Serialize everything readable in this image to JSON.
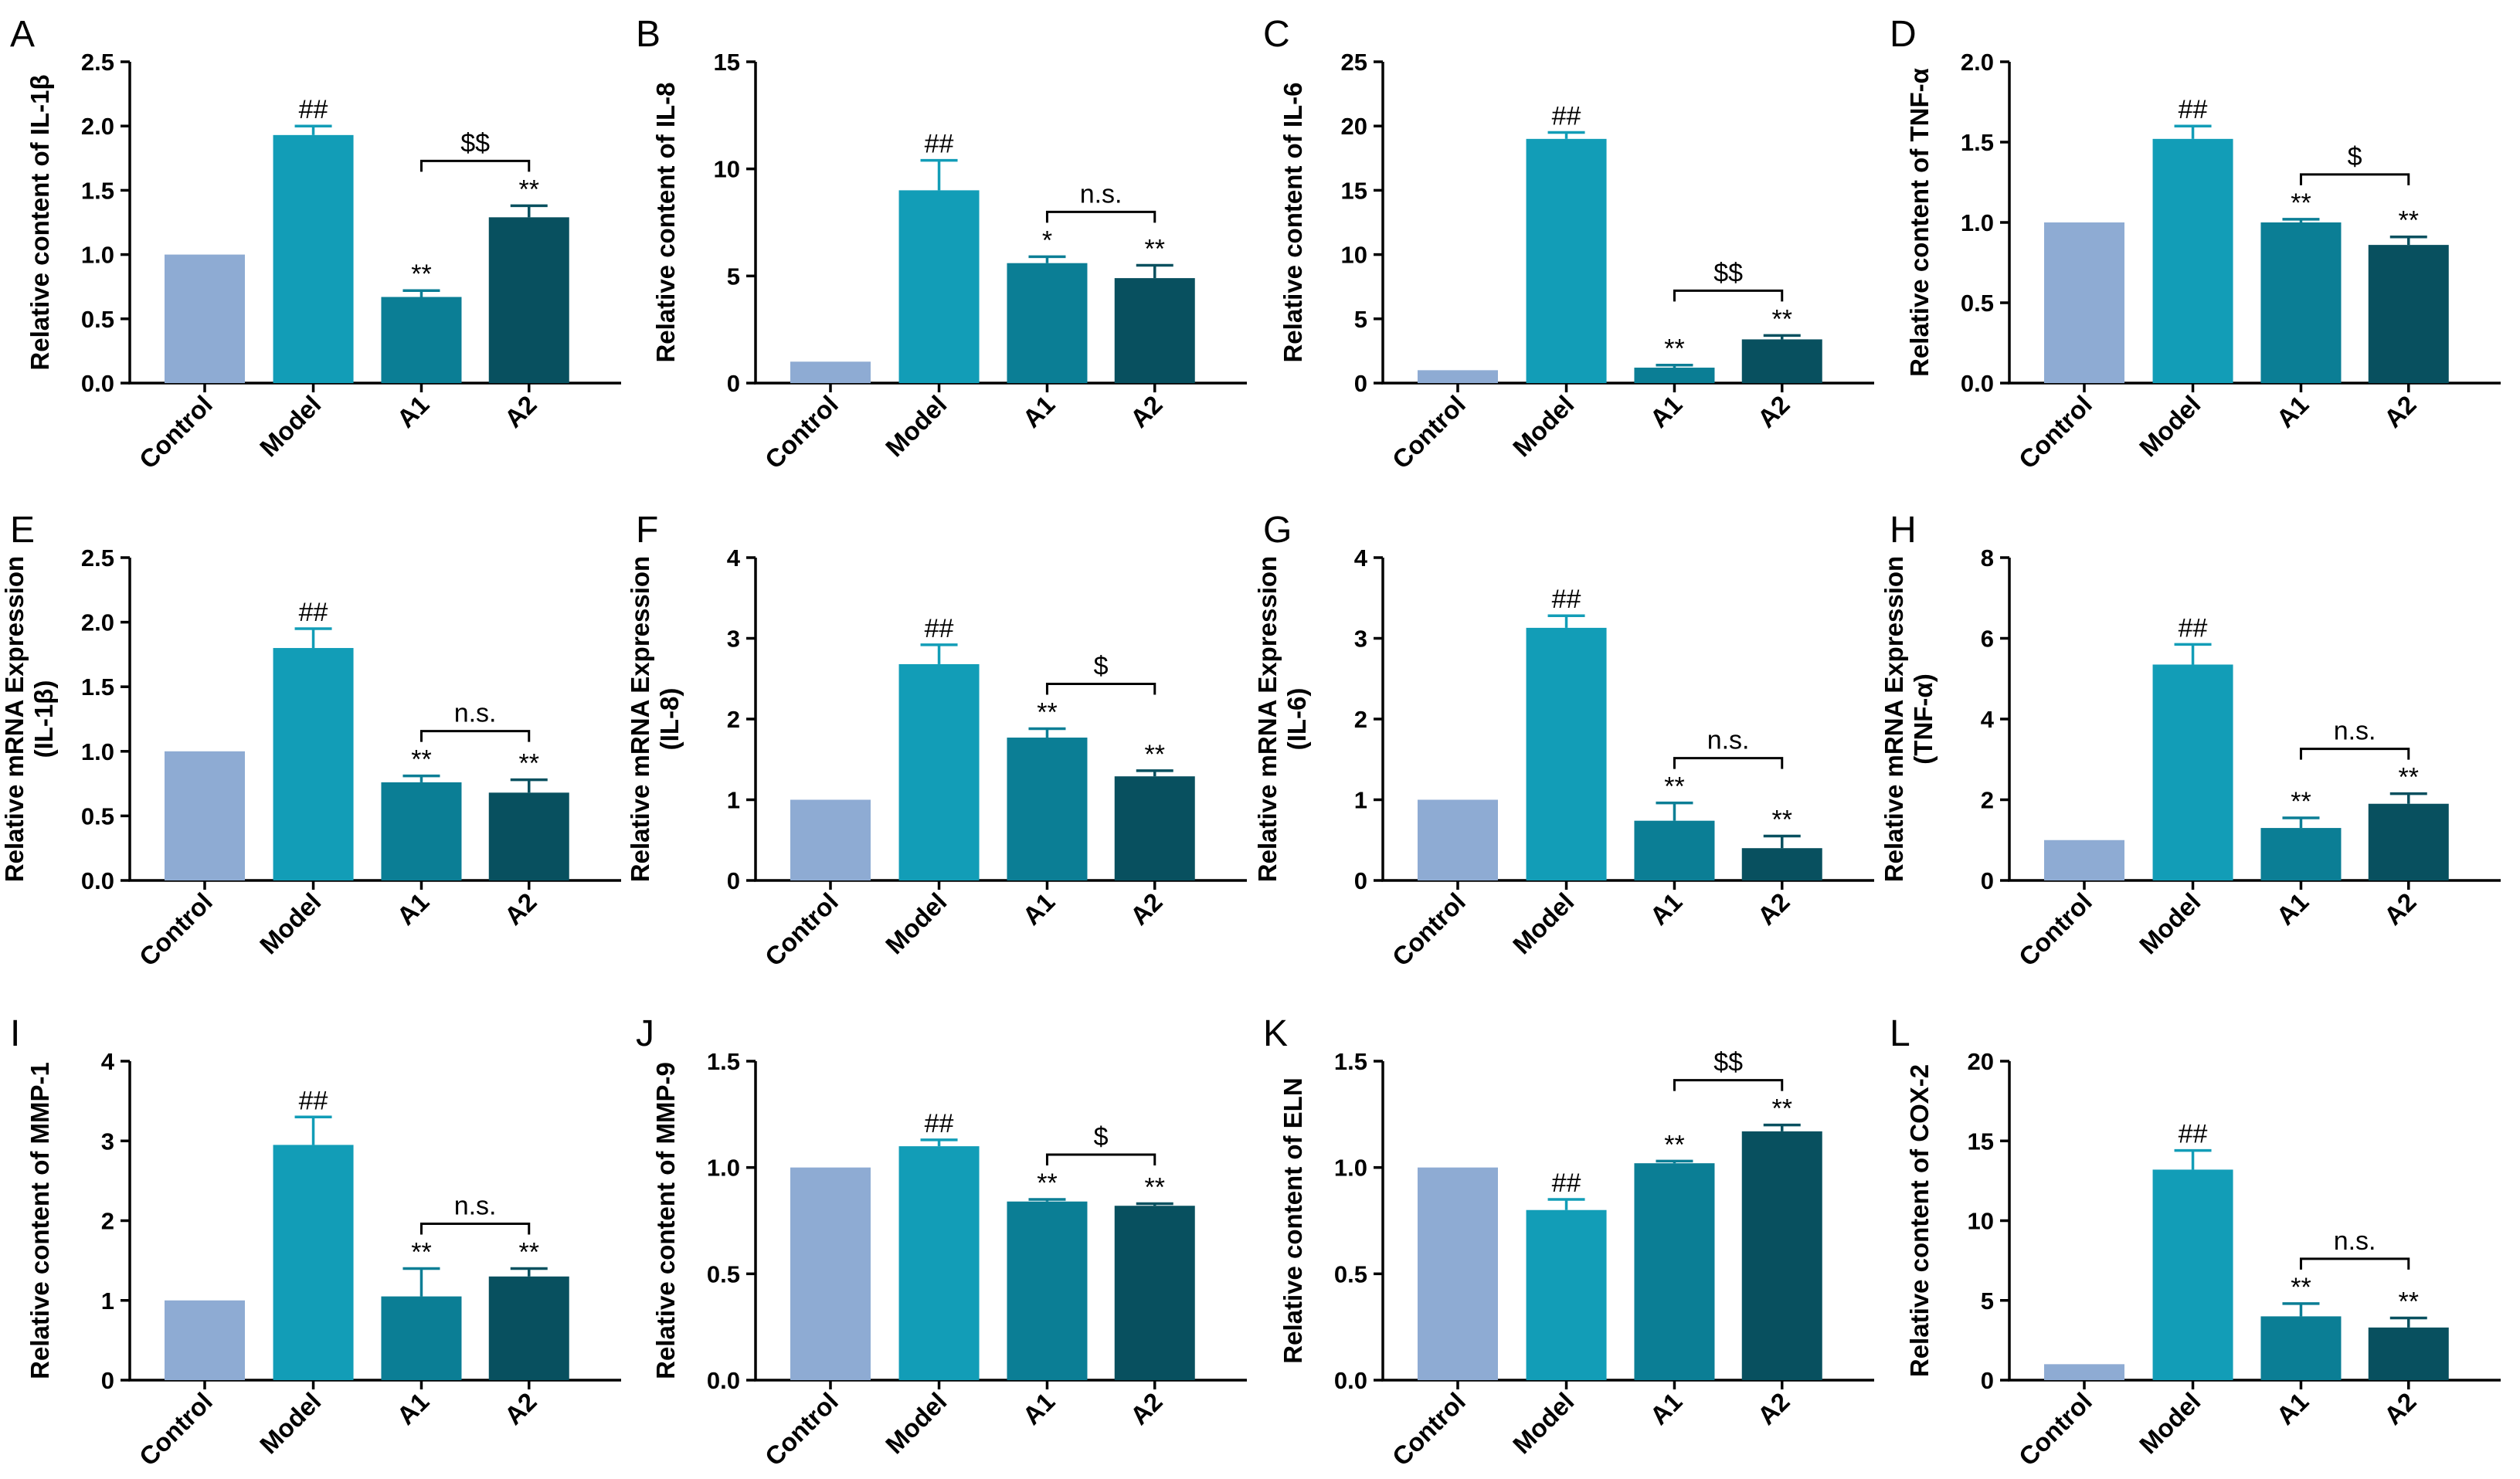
{
  "chart_data": [
    {
      "panel": "A",
      "type": "bar",
      "categories": [
        "Control",
        "Model",
        "A1",
        "A2"
      ],
      "values": [
        1.0,
        1.93,
        0.67,
        1.29
      ],
      "errors": [
        0,
        0.07,
        0.05,
        0.09
      ],
      "ylabel_lines": [
        "Relative content of IL-1β"
      ],
      "ylim": [
        0,
        2.5
      ],
      "yticks": [
        "0.0",
        "0.5",
        "1.0",
        "1.5",
        "2.0",
        "2.5"
      ],
      "annotations": [
        "",
        "##",
        "**",
        "**"
      ],
      "bracket": {
        "from": 2,
        "to": 3,
        "label": "$$"
      }
    },
    {
      "panel": "B",
      "type": "bar",
      "categories": [
        "Control",
        "Model",
        "A1",
        "A2"
      ],
      "values": [
        1.0,
        9.0,
        5.6,
        4.9
      ],
      "errors": [
        0,
        1.4,
        0.3,
        0.6
      ],
      "ylabel_lines": [
        "Relative content of IL-8"
      ],
      "ylim": [
        0,
        15
      ],
      "yticks": [
        "0",
        "5",
        "10",
        "15"
      ],
      "annotations": [
        "",
        "##",
        "*",
        "**"
      ],
      "bracket": {
        "from": 2,
        "to": 3,
        "label": "n.s."
      }
    },
    {
      "panel": "C",
      "type": "bar",
      "categories": [
        "Control",
        "Model",
        "A1",
        "A2"
      ],
      "values": [
        1.0,
        19.0,
        1.2,
        3.4
      ],
      "errors": [
        0,
        0.5,
        0.2,
        0.3
      ],
      "ylabel_lines": [
        "Relative content of IL-6"
      ],
      "ylim": [
        0,
        25
      ],
      "yticks": [
        "0",
        "5",
        "10",
        "15",
        "20",
        "25"
      ],
      "annotations": [
        "",
        "##",
        "**",
        "**"
      ],
      "bracket": {
        "from": 2,
        "to": 3,
        "label": "$$"
      }
    },
    {
      "panel": "D",
      "type": "bar",
      "categories": [
        "Control",
        "Model",
        "A1",
        "A2"
      ],
      "values": [
        1.0,
        1.52,
        1.0,
        0.86
      ],
      "errors": [
        0,
        0.08,
        0.02,
        0.05
      ],
      "ylabel_lines": [
        "Relative content of TNF-α"
      ],
      "ylim": [
        0,
        2.0
      ],
      "yticks": [
        "0.0",
        "0.5",
        "1.0",
        "1.5",
        "2.0"
      ],
      "annotations": [
        "",
        "##",
        "**",
        "**"
      ],
      "bracket": {
        "from": 2,
        "to": 3,
        "label": "$"
      }
    },
    {
      "panel": "E",
      "type": "bar",
      "categories": [
        "Control",
        "Model",
        "A1",
        "A2"
      ],
      "values": [
        1.0,
        1.8,
        0.76,
        0.68
      ],
      "errors": [
        0,
        0.15,
        0.05,
        0.1
      ],
      "ylabel_lines": [
        "Relative mRNA Expression",
        "(IL-1β)"
      ],
      "ylim": [
        0,
        2.5
      ],
      "yticks": [
        "0.0",
        "0.5",
        "1.0",
        "1.5",
        "2.0",
        "2.5"
      ],
      "annotations": [
        "",
        "##",
        "**",
        "**"
      ],
      "bracket": {
        "from": 2,
        "to": 3,
        "label": "n.s."
      }
    },
    {
      "panel": "F",
      "type": "bar",
      "categories": [
        "Control",
        "Model",
        "A1",
        "A2"
      ],
      "values": [
        1.0,
        2.68,
        1.77,
        1.29
      ],
      "errors": [
        0,
        0.24,
        0.11,
        0.07
      ],
      "ylabel_lines": [
        "Relative mRNA Expression",
        "(IL-8)"
      ],
      "ylim": [
        0,
        4
      ],
      "yticks": [
        "0",
        "1",
        "2",
        "3",
        "4"
      ],
      "annotations": [
        "",
        "##",
        "**",
        "**"
      ],
      "bracket": {
        "from": 2,
        "to": 3,
        "label": "$"
      }
    },
    {
      "panel": "G",
      "type": "bar",
      "categories": [
        "Control",
        "Model",
        "A1",
        "A2"
      ],
      "values": [
        1.0,
        3.13,
        0.74,
        0.4
      ],
      "errors": [
        0,
        0.15,
        0.22,
        0.15
      ],
      "ylabel_lines": [
        "Relative mRNA Expression",
        "(IL-6)"
      ],
      "ylim": [
        0,
        4
      ],
      "yticks": [
        "0",
        "1",
        "2",
        "3",
        "4"
      ],
      "annotations": [
        "",
        "##",
        "**",
        "**"
      ],
      "bracket": {
        "from": 2,
        "to": 3,
        "label": "n.s."
      }
    },
    {
      "panel": "H",
      "type": "bar",
      "categories": [
        "Control",
        "Model",
        "A1",
        "A2"
      ],
      "values": [
        1.0,
        5.35,
        1.3,
        1.9
      ],
      "errors": [
        0,
        0.5,
        0.25,
        0.25
      ],
      "ylabel_lines": [
        "Relative mRNA Expression",
        "(TNF-α)"
      ],
      "ylim": [
        0,
        8
      ],
      "yticks": [
        "0",
        "2",
        "4",
        "6",
        "8"
      ],
      "annotations": [
        "",
        "##",
        "**",
        "**"
      ],
      "bracket": {
        "from": 2,
        "to": 3,
        "label": "n.s."
      }
    },
    {
      "panel": "I",
      "type": "bar",
      "categories": [
        "Control",
        "Model",
        "A1",
        "A2"
      ],
      "values": [
        1.0,
        2.95,
        1.05,
        1.3
      ],
      "errors": [
        0,
        0.35,
        0.35,
        0.1
      ],
      "ylabel_lines": [
        "Relative content of MMP-1"
      ],
      "ylim": [
        0,
        4
      ],
      "yticks": [
        "0",
        "1",
        "2",
        "3",
        "4"
      ],
      "annotations": [
        "",
        "##",
        "**",
        "**"
      ],
      "bracket": {
        "from": 2,
        "to": 3,
        "label": "n.s."
      }
    },
    {
      "panel": "J",
      "type": "bar",
      "categories": [
        "Control",
        "Model",
        "A1",
        "A2"
      ],
      "values": [
        1.0,
        1.1,
        0.84,
        0.82
      ],
      "errors": [
        0,
        0.03,
        0.01,
        0.01
      ],
      "ylabel_lines": [
        "Relative content of MMP-9"
      ],
      "ylim": [
        0,
        1.5
      ],
      "yticks": [
        "0.0",
        "0.5",
        "1.0",
        "1.5"
      ],
      "annotations": [
        "",
        "##",
        "**",
        "**"
      ],
      "bracket": {
        "from": 2,
        "to": 3,
        "label": "$"
      }
    },
    {
      "panel": "K",
      "type": "bar",
      "categories": [
        "Control",
        "Model",
        "A1",
        "A2"
      ],
      "values": [
        1.0,
        0.8,
        1.02,
        1.17
      ],
      "errors": [
        0,
        0.05,
        0.01,
        0.03
      ],
      "ylabel_lines": [
        "Relative content of ELN"
      ],
      "ylim": [
        0,
        1.5
      ],
      "yticks": [
        "0.0",
        "0.5",
        "1.0",
        "1.5"
      ],
      "annotations": [
        "",
        "##",
        "**",
        "**"
      ],
      "bracket": {
        "from": 2,
        "to": 3,
        "label": "$$"
      }
    },
    {
      "panel": "L",
      "type": "bar",
      "categories": [
        "Control",
        "Model",
        "A1",
        "A2"
      ],
      "values": [
        1.0,
        13.2,
        4.0,
        3.3
      ],
      "errors": [
        0,
        1.2,
        0.8,
        0.6
      ],
      "ylabel_lines": [
        "Relative content of COX-2"
      ],
      "ylim": [
        0,
        20
      ],
      "yticks": [
        "0",
        "5",
        "10",
        "15",
        "20"
      ],
      "annotations": [
        "",
        "##",
        "**",
        "**"
      ],
      "bracket": {
        "from": 2,
        "to": 3,
        "label": "n.s."
      }
    }
  ],
  "colors": {
    "bars": [
      "#8eabd3",
      "#129db7",
      "#0b7e95",
      "#08505f"
    ],
    "axis": "#000000"
  }
}
